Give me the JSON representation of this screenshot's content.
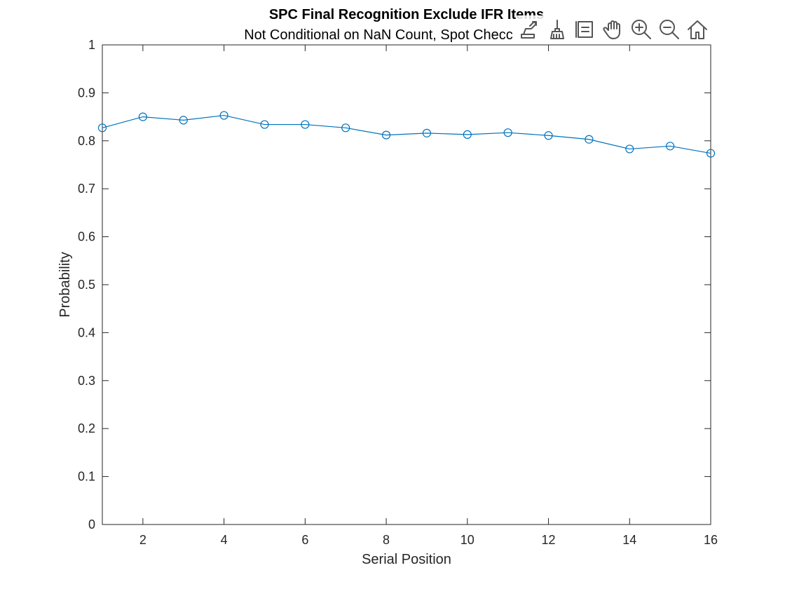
{
  "chart_data": {
    "type": "line",
    "title": "SPC Final Recognition Exclude IFR Items",
    "subtitle": "Not Conditional on NaN Count, Spot Checc",
    "xlabel": "Serial Position",
    "ylabel": "Probability",
    "xlim": [
      1,
      16
    ],
    "ylim": [
      0,
      1
    ],
    "xticks": [
      2,
      4,
      6,
      8,
      10,
      12,
      14,
      16
    ],
    "xtick_labels": [
      "2",
      "4",
      "6",
      "8",
      "10",
      "12",
      "14",
      "16"
    ],
    "yticks": [
      0,
      0.1,
      0.2,
      0.3,
      0.4,
      0.5,
      0.6,
      0.7,
      0.8,
      0.9,
      1
    ],
    "ytick_labels": [
      "0",
      "0.1",
      "0.2",
      "0.3",
      "0.4",
      "0.5",
      "0.6",
      "0.7",
      "0.8",
      "0.9",
      "1"
    ],
    "grid": false,
    "series": [
      {
        "x": [
          1,
          2,
          3,
          4,
          5,
          6,
          7,
          8,
          9,
          10,
          11,
          12,
          13,
          14,
          15,
          16
        ],
        "values": [
          0.827,
          0.85,
          0.843,
          0.853,
          0.834,
          0.834,
          0.827,
          0.812,
          0.816,
          0.813,
          0.817,
          0.811,
          0.803,
          0.783,
          0.789,
          0.774
        ],
        "color": "#0072BD",
        "marker": "circle"
      }
    ]
  },
  "toolbar": {
    "tools": [
      {
        "name": "export-icon"
      },
      {
        "name": "brush-icon"
      },
      {
        "name": "datatip-icon"
      },
      {
        "name": "pan-icon"
      },
      {
        "name": "zoom-in-icon"
      },
      {
        "name": "zoom-out-icon"
      },
      {
        "name": "home-icon"
      }
    ]
  }
}
